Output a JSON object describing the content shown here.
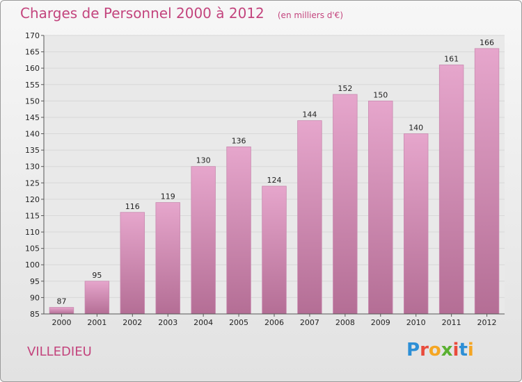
{
  "header": {
    "title": "Charges de Personnel 2000 à 2012",
    "subtitle": "(en milliers d'€)"
  },
  "footer": {
    "city": "VILLEDIEU",
    "logo": "Proxiti"
  },
  "colors": {
    "accent": "#c3447d",
    "bar_top": "#e6a6cc",
    "bar_bottom": "#b46e95",
    "grid": "#d8d8d8"
  },
  "chart_data": {
    "type": "bar",
    "title": "Charges de Personnel 2000 à 2012",
    "subtitle": "(en milliers d'€)",
    "xlabel": "",
    "ylabel": "",
    "categories": [
      "2000",
      "2001",
      "2002",
      "2003",
      "2004",
      "2005",
      "2006",
      "2007",
      "2008",
      "2009",
      "2010",
      "2011",
      "2012"
    ],
    "values": [
      87,
      95,
      116,
      119,
      130,
      136,
      124,
      144,
      152,
      150,
      140,
      161,
      166
    ],
    "ylim": [
      85,
      170
    ],
    "yticks": [
      85,
      90,
      95,
      100,
      105,
      110,
      115,
      120,
      125,
      130,
      135,
      140,
      145,
      150,
      155,
      160,
      165,
      170
    ],
    "grid": true,
    "legend": "none"
  }
}
